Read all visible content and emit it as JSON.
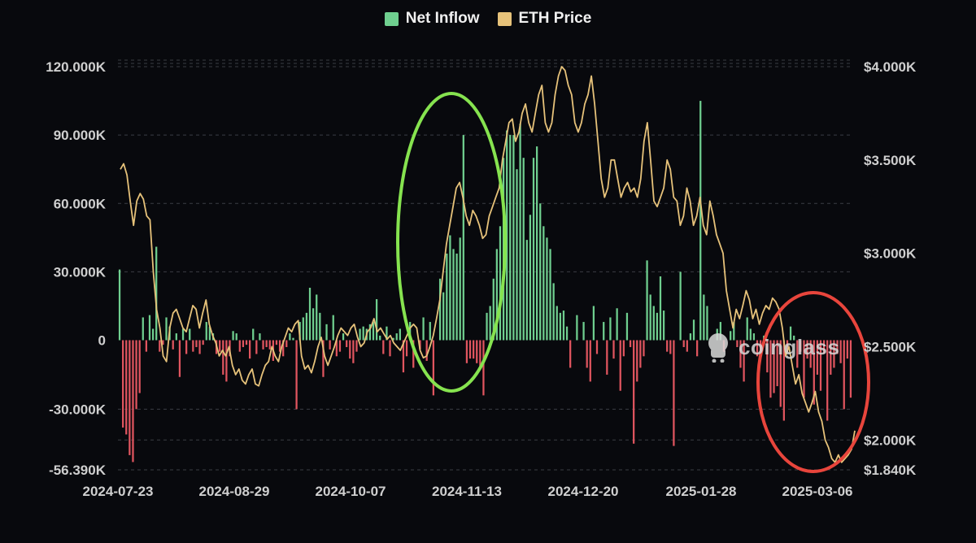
{
  "legend": {
    "net_inflow_label": "Net Inflow",
    "eth_price_label": "ETH Price"
  },
  "watermark": {
    "text": "coinglass"
  },
  "colors": {
    "background": "#08090d",
    "positive_bar": "#6fcf8f",
    "negative_bar": "#e0555f",
    "price_line": "#e6c27a",
    "grid": "#3a3d44",
    "green_circle": "#86e34f",
    "red_circle": "#e8453c"
  },
  "chart_data": {
    "type": "bar",
    "title": "",
    "xlabel": "",
    "ylabel": "",
    "y_left_ticks": [
      "120.000K",
      "90.000K",
      "60.000K",
      "30.000K",
      "0",
      "-30.000K",
      "-56.390K"
    ],
    "y_right_ticks": [
      "$4.000K",
      "$3.500K",
      "$3.000K",
      "$2.500K",
      "$2.000K",
      "$1.840K"
    ],
    "x_ticks": [
      "2024-07-23",
      "2024-08-29",
      "2024-10-07",
      "2024-11-13",
      "2024-12-20",
      "2025-01-28",
      "2025-03-06"
    ],
    "ylim_left": [
      -56390,
      120000
    ],
    "ylim_right": [
      1840,
      4000
    ],
    "grid": true,
    "legend_position": "top-center",
    "series": [
      {
        "name": "Net Inflow",
        "type": "bar",
        "values": [
          31,
          -38,
          -41,
          -50,
          -53,
          -30,
          -23,
          10,
          -5,
          11,
          5,
          41,
          -5,
          -2,
          10,
          6,
          -4,
          3,
          -16,
          5,
          -6,
          5,
          -5,
          -3,
          -6,
          -2,
          8,
          6,
          3,
          -6,
          -5,
          -15,
          -18,
          -7,
          4,
          3,
          -5,
          -3,
          -2,
          -8,
          5,
          -6,
          3,
          -4,
          -3,
          -4,
          -9,
          -2,
          -5,
          -7,
          -3,
          3,
          1,
          -30,
          8,
          10,
          12,
          23,
          14,
          20,
          12,
          -16,
          7,
          -4,
          11,
          -7,
          -5,
          3,
          -3,
          -8,
          -10,
          -5,
          5,
          6,
          5,
          7,
          8,
          18,
          2,
          -6,
          6,
          -7,
          1,
          3,
          5,
          -14,
          -7,
          8,
          -12,
          0,
          -4,
          10,
          -9,
          8,
          -24,
          0,
          27,
          21,
          38,
          46,
          40,
          38,
          45,
          90,
          -10,
          -8,
          -8,
          -10,
          -12,
          -24,
          12,
          15,
          27,
          40,
          50,
          80,
          92,
          90,
          90,
          75,
          95,
          80,
          44,
          55,
          80,
          85,
          60,
          50,
          45,
          40,
          25,
          15,
          12,
          13,
          6,
          -12,
          0,
          11,
          0,
          8,
          -12,
          -18,
          15,
          -6,
          0,
          8,
          -15,
          10,
          -8,
          14,
          -22,
          -7,
          12,
          -3,
          -45,
          -18,
          -12,
          -7,
          35,
          20,
          15,
          12,
          28,
          13,
          -5,
          -6,
          -46,
          0,
          30,
          -3,
          -5,
          3,
          9,
          -7,
          105,
          20,
          15,
          0,
          0,
          5,
          8,
          -5,
          0,
          4,
          8,
          -3,
          -12,
          -18,
          10,
          5,
          3,
          -7,
          -8,
          2,
          -14,
          -25,
          -23,
          -20,
          -29,
          -35,
          -5,
          6,
          2,
          -12,
          -5,
          -25,
          -8,
          -12,
          -28,
          -15,
          -22,
          -6,
          -35,
          -15,
          -12,
          -6,
          -10,
          -30,
          -8,
          -25
        ],
        "unit": "K"
      },
      {
        "name": "ETH Price",
        "type": "line",
        "values": [
          3450,
          3480,
          3420,
          3280,
          3150,
          3280,
          3320,
          3290,
          3200,
          3180,
          2900,
          2700,
          2600,
          2450,
          2420,
          2600,
          2680,
          2700,
          2650,
          2600,
          2580,
          2650,
          2720,
          2700,
          2600,
          2680,
          2750,
          2620,
          2560,
          2520,
          2450,
          2480,
          2450,
          2500,
          2400,
          2350,
          2380,
          2320,
          2300,
          2350,
          2380,
          2300,
          2290,
          2350,
          2400,
          2420,
          2500,
          2450,
          2420,
          2500,
          2550,
          2600,
          2580,
          2620,
          2640,
          2450,
          2380,
          2400,
          2360,
          2420,
          2500,
          2550,
          2450,
          2400,
          2450,
          2500,
          2560,
          2600,
          2580,
          2560,
          2600,
          2620,
          2550,
          2500,
          2520,
          2580,
          2600,
          2650,
          2580,
          2600,
          2570,
          2540,
          2560,
          2520,
          2500,
          2480,
          2520,
          2560,
          2600,
          2620,
          2600,
          2480,
          2440,
          2450,
          2500,
          2560,
          2650,
          2750,
          2900,
          3050,
          3150,
          3250,
          3350,
          3380,
          3300,
          3200,
          3150,
          3230,
          3200,
          3150,
          3080,
          3100,
          3200,
          3250,
          3300,
          3350,
          3500,
          3600,
          3700,
          3720,
          3600,
          3650,
          3750,
          3800,
          3700,
          3650,
          3750,
          3850,
          3900,
          3700,
          3650,
          3700,
          3850,
          3950,
          4000,
          3980,
          3900,
          3850,
          3700,
          3650,
          3700,
          3800,
          3850,
          3950,
          3800,
          3600,
          3400,
          3300,
          3350,
          3500,
          3500,
          3400,
          3300,
          3350,
          3380,
          3330,
          3350,
          3300,
          3400,
          3600,
          3700,
          3500,
          3280,
          3250,
          3300,
          3350,
          3500,
          3450,
          3300,
          3280,
          3150,
          3200,
          3350,
          3280,
          3150,
          3200,
          3300,
          3150,
          3100,
          3280,
          3200,
          3100,
          3050,
          3000,
          2800,
          2700,
          2600,
          2700,
          2650,
          2720,
          2800,
          2750,
          2650,
          2700,
          2620,
          2680,
          2720,
          2700,
          2760,
          2740,
          2700,
          2600,
          2450,
          2500,
          2400,
          2300,
          2350,
          2250,
          2200,
          2150,
          2200,
          2260,
          2150,
          2100,
          2000,
          1960,
          1900,
          1880,
          1920,
          1880,
          1900,
          1920,
          1950,
          2050
        ],
        "unit": "$"
      }
    ]
  }
}
